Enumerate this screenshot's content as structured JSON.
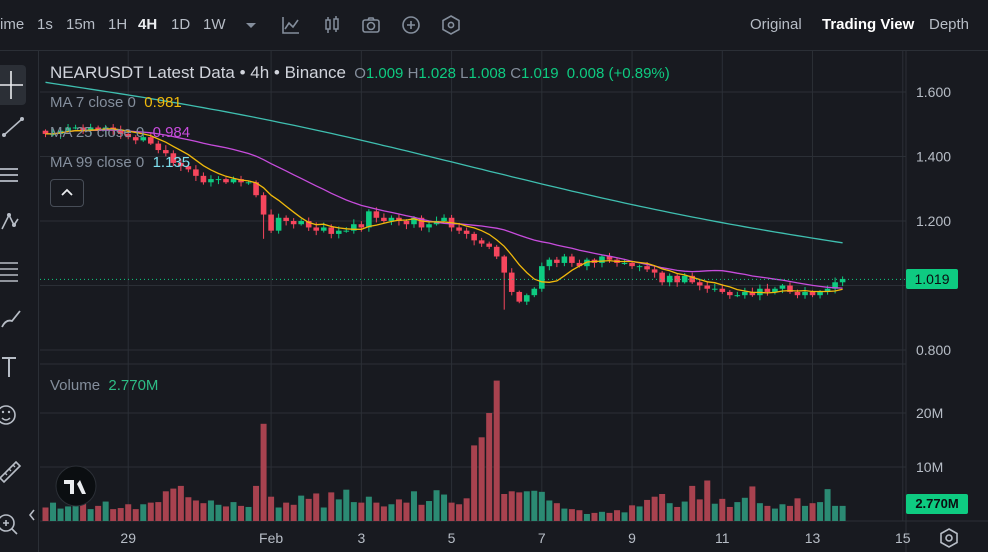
{
  "topbar": {
    "intervals": [
      "ime",
      "1s",
      "15m",
      "1H",
      "4H",
      "1D",
      "1W"
    ],
    "active_interval": "4H",
    "views": [
      "Original",
      "Trading View",
      "Depth"
    ],
    "active_view": "Trading View"
  },
  "legend": {
    "title": "NEARUSDT Latest Data • 4h • Binance",
    "ohlc": {
      "o_label": "O",
      "o": "1.009",
      "h_label": "H",
      "h": "1.028",
      "l_label": "L",
      "l": "1.008",
      "c_label": "C",
      "c": "1.019",
      "change": "0.008 (+0.89%)"
    },
    "ma7_label": "MA 7 close 0",
    "ma7_value": "0.981",
    "ma25_label": "MA 25 close 0",
    "ma25_value": "0.984",
    "ma99_label": "MA 99 close 0",
    "ma99_value": "1.135",
    "volume_label": "Volume",
    "volume_value": "2.770M"
  },
  "colors": {
    "up": "#0ecb81",
    "down": "#f6465d",
    "ma7": "#f0b90b",
    "ma25": "#c74cdc",
    "ma99": "#3fbfb0",
    "up_bar": "#2b8a73",
    "down_bar": "#a8424f"
  },
  "chart_data": {
    "type": "candlestick",
    "price_axis": {
      "ticks": [
        1.6,
        1.4,
        1.2,
        0.8
      ],
      "tick_labels": [
        "1.600",
        "1.400",
        "1.200",
        "0.800"
      ],
      "range": [
        0.78,
        1.66
      ]
    },
    "volume_axis": {
      "ticks": [
        20,
        10
      ],
      "tick_labels": [
        "20M",
        "10M"
      ],
      "range": [
        0,
        26
      ]
    },
    "x_ticks": [
      {
        "label": "29",
        "index": 11
      },
      {
        "label": "Feb",
        "index": 30
      },
      {
        "label": "3",
        "index": 42
      },
      {
        "label": "5",
        "index": 54
      },
      {
        "label": "7",
        "index": 66
      },
      {
        "label": "9",
        "index": 78
      },
      {
        "label": "11",
        "index": 90
      },
      {
        "label": "13",
        "index": 102
      },
      {
        "label": "15",
        "index": 114
      }
    ],
    "last_price": "1.019",
    "last_price_value": 1.019,
    "last_volume": "2.770M",
    "ma99": {
      "start": 1.63,
      "end": 1.14
    },
    "closes": [
      1.47,
      1.47,
      1.48,
      1.49,
      1.49,
      1.48,
      1.49,
      1.48,
      1.49,
      1.48,
      1.47,
      1.46,
      1.45,
      1.46,
      1.44,
      1.42,
      1.41,
      1.38,
      1.37,
      1.36,
      1.34,
      1.32,
      1.33,
      1.33,
      1.32,
      1.33,
      1.32,
      1.32,
      1.28,
      1.22,
      1.17,
      1.21,
      1.2,
      1.19,
      1.2,
      1.18,
      1.17,
      1.18,
      1.16,
      1.17,
      1.17,
      1.19,
      1.18,
      1.23,
      1.21,
      1.2,
      1.21,
      1.2,
      1.19,
      1.21,
      1.18,
      1.19,
      1.2,
      1.21,
      1.18,
      1.17,
      1.16,
      1.14,
      1.13,
      1.12,
      1.09,
      1.04,
      0.98,
      0.95,
      0.97,
      0.99,
      1.06,
      1.08,
      1.07,
      1.09,
      1.07,
      1.06,
      1.08,
      1.07,
      1.09,
      1.08,
      1.07,
      1.07,
      1.06,
      1.06,
      1.05,
      1.04,
      1.01,
      1.03,
      1.01,
      1.03,
      1.01,
      1.0,
      0.99,
      0.99,
      0.98,
      0.97,
      0.97,
      0.98,
      0.97,
      0.99,
      0.98,
      0.99,
      1.0,
      0.98,
      0.97,
      0.98,
      0.97,
      0.98,
      0.99,
      1.01,
      1.02
    ],
    "volumes": [
      2.5,
      3.4,
      2.3,
      2.7,
      3.8,
      3.2,
      2.2,
      2.8,
      3.6,
      2.2,
      2.4,
      3.1,
      2.2,
      3.1,
      3.4,
      3.5,
      5.5,
      6.0,
      6.5,
      4.4,
      3.8,
      3.3,
      3.8,
      3.0,
      2.7,
      3.5,
      2.8,
      2.6,
      6.5,
      18.0,
      4.5,
      2.5,
      3.4,
      3.0,
      4.7,
      4.1,
      5.1,
      2.5,
      5.3,
      4.0,
      5.8,
      3.5,
      3.4,
      4.5,
      3.4,
      2.7,
      3.1,
      4.0,
      3.4,
      5.5,
      3.0,
      3.7,
      5.7,
      4.9,
      3.4,
      3.1,
      4.2,
      14.0,
      15.5,
      20.0,
      26.0,
      5.0,
      5.5,
      5.3,
      5.5,
      5.6,
      5.4,
      3.8,
      3.3,
      2.3,
      2.2,
      2.0,
      1.3,
      1.5,
      1.7,
      1.5,
      2.0,
      1.6,
      2.9,
      2.7,
      3.9,
      4.5,
      5.0,
      3.3,
      2.6,
      3.6,
      6.5,
      4.0,
      7.5,
      3.2,
      4.1,
      2.6,
      3.5,
      4.3,
      6.4,
      3.3,
      2.8,
      2.3,
      3.1,
      2.8,
      4.2,
      2.8,
      3.3,
      3.5,
      5.9,
      2.8,
      2.8
    ]
  }
}
